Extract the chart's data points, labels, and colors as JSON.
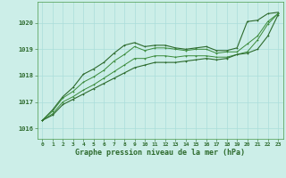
{
  "title": "Graphe pression niveau de la mer (hPa)",
  "background_color": "#cceee8",
  "grid_color": "#aaddda",
  "xlim": [
    -0.5,
    23.5
  ],
  "ylim": [
    1015.6,
    1020.8
  ],
  "yticks": [
    1016,
    1017,
    1018,
    1019,
    1020
  ],
  "xticks": [
    0,
    1,
    2,
    3,
    4,
    5,
    6,
    7,
    8,
    9,
    10,
    11,
    12,
    13,
    14,
    15,
    16,
    17,
    18,
    19,
    20,
    21,
    22,
    23
  ],
  "series": [
    {
      "x": [
        0,
        1,
        2,
        3,
        4,
        5,
        6,
        7,
        8,
        9,
        10,
        11,
        12,
        13,
        14,
        15,
        16,
        17,
        18,
        19,
        20,
        21,
        22,
        23
      ],
      "y": [
        1016.3,
        1016.7,
        1017.2,
        1017.55,
        1018.05,
        1018.25,
        1018.5,
        1018.85,
        1019.15,
        1019.25,
        1019.1,
        1019.15,
        1019.15,
        1019.05,
        1019.0,
        1019.05,
        1019.1,
        1018.95,
        1018.95,
        1019.05,
        1020.05,
        1020.1,
        1020.35,
        1020.4
      ],
      "color": "#2d6a2d",
      "lw": 0.8,
      "marker": "+"
    },
    {
      "x": [
        0,
        1,
        2,
        3,
        4,
        5,
        6,
        7,
        8,
        9,
        10,
        11,
        12,
        13,
        14,
        15,
        16,
        17,
        18,
        19,
        20,
        21,
        22,
        23
      ],
      "y": [
        1016.3,
        1016.65,
        1017.15,
        1017.4,
        1017.75,
        1017.95,
        1018.2,
        1018.55,
        1018.8,
        1019.1,
        1018.95,
        1019.05,
        1019.05,
        1019.0,
        1018.95,
        1019.0,
        1019.0,
        1018.85,
        1018.9,
        1018.9,
        1019.2,
        1019.5,
        1020.05,
        1020.35
      ],
      "color": "#3a8a3a",
      "lw": 0.7,
      "marker": "+"
    },
    {
      "x": [
        0,
        1,
        2,
        3,
        4,
        5,
        6,
        7,
        8,
        9,
        10,
        11,
        12,
        13,
        14,
        15,
        16,
        17,
        18,
        19,
        20,
        21,
        22,
        23
      ],
      "y": [
        1016.3,
        1016.55,
        1017.0,
        1017.2,
        1017.45,
        1017.65,
        1017.9,
        1018.15,
        1018.4,
        1018.65,
        1018.65,
        1018.75,
        1018.75,
        1018.7,
        1018.75,
        1018.75,
        1018.75,
        1018.7,
        1018.7,
        1018.8,
        1018.9,
        1019.35,
        1019.95,
        1020.35
      ],
      "color": "#3a8a3a",
      "lw": 0.7,
      "marker": "+"
    },
    {
      "x": [
        0,
        1,
        2,
        3,
        4,
        5,
        6,
        7,
        8,
        9,
        10,
        11,
        12,
        13,
        14,
        15,
        16,
        17,
        18,
        19,
        20,
        21,
        22,
        23
      ],
      "y": [
        1016.3,
        1016.5,
        1016.9,
        1017.1,
        1017.3,
        1017.5,
        1017.7,
        1017.9,
        1018.1,
        1018.3,
        1018.4,
        1018.5,
        1018.5,
        1018.5,
        1018.55,
        1018.6,
        1018.65,
        1018.6,
        1018.65,
        1018.8,
        1018.85,
        1019.0,
        1019.5,
        1020.3
      ],
      "color": "#2d6a2d",
      "lw": 0.8,
      "marker": "+"
    }
  ]
}
